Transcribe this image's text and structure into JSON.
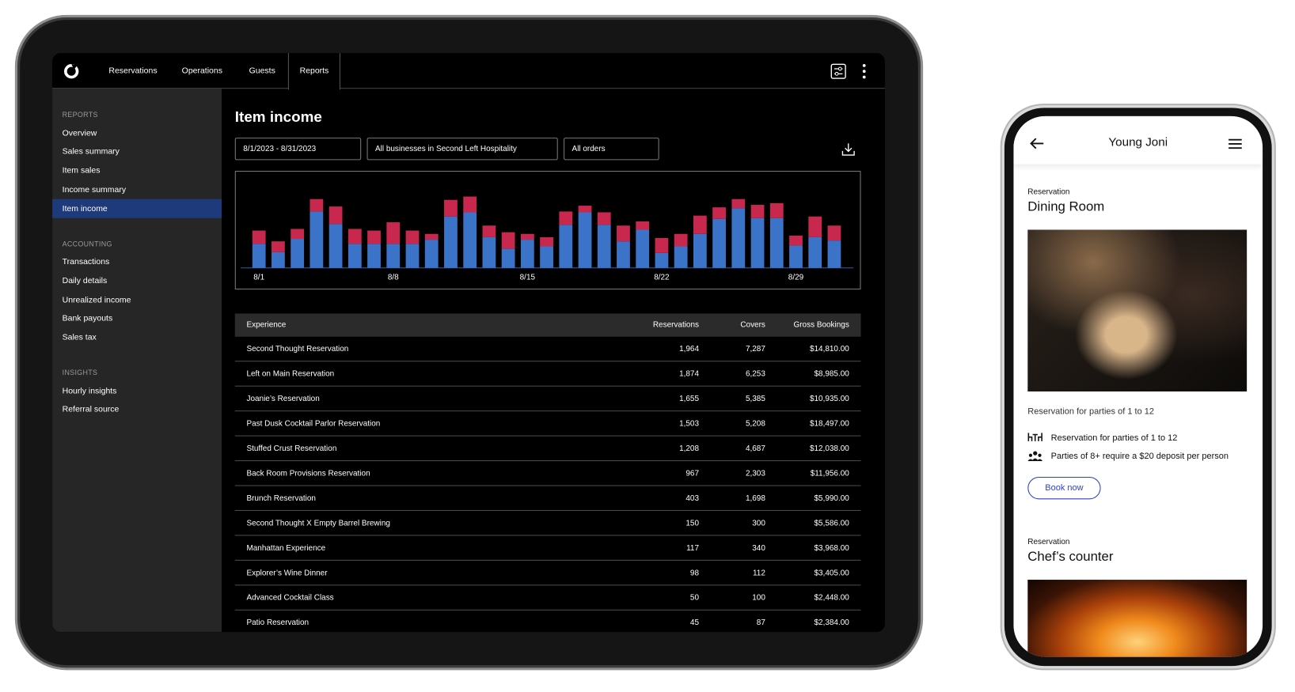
{
  "nav": {
    "items": [
      "Reservations",
      "Operations",
      "Guests",
      "Reports"
    ]
  },
  "sidebar": {
    "sections": [
      {
        "heading": "REPORTS",
        "items": [
          "Overview",
          "Sales summary",
          "Item sales",
          "Income summary",
          "Item income"
        ]
      },
      {
        "heading": "ACCOUNTING",
        "items": [
          "Transactions",
          "Daily details",
          "Unrealized income",
          "Bank payouts",
          "Sales tax"
        ]
      },
      {
        "heading": "INSIGHTS",
        "items": [
          "Hourly insights",
          "Referral source"
        ]
      }
    ]
  },
  "report": {
    "title": "Item income",
    "filters": [
      "8/1/2023 - 8/31/2023",
      "All businesses in Second Left Hospitality",
      "All orders"
    ]
  },
  "chart_data": {
    "type": "bar",
    "stacked": true,
    "categories": [
      "8/1",
      null,
      null,
      null,
      null,
      null,
      null,
      "8/8",
      null,
      null,
      null,
      null,
      null,
      null,
      "8/15",
      null,
      null,
      null,
      null,
      null,
      null,
      "8/22",
      null,
      null,
      null,
      null,
      null,
      null,
      "8/29",
      null,
      null
    ],
    "series": [
      {
        "color": "#3b73c8",
        "values": [
          29,
          19,
          35,
          68,
          53,
          29,
          29,
          29,
          29,
          34,
          62,
          67,
          37,
          23,
          34,
          26,
          52,
          67,
          52,
          32,
          46,
          18,
          26,
          41,
          59,
          72,
          60,
          60,
          27,
          37,
          33
        ]
      },
      {
        "color": "#c8274e",
        "values": [
          16,
          13,
          12,
          15,
          21,
          18,
          16,
          26,
          16,
          7,
          20,
          19,
          14,
          20,
          7,
          11,
          16,
          8,
          15,
          19,
          10,
          18,
          15,
          22,
          14,
          11,
          16,
          18,
          12,
          25,
          18
        ]
      }
    ],
    "ylim": [
      0,
      90
    ]
  },
  "table": {
    "columns": [
      "Experience",
      "Reservations",
      "Covers",
      "Gross Bookings"
    ],
    "rows": [
      [
        "Second Thought Reservation",
        "1,964",
        "7,287",
        "$14,810.00"
      ],
      [
        "Left on Main Reservation",
        "1,874",
        "6,253",
        "$8,985.00"
      ],
      [
        "Joanie’s Reservation",
        "1,655",
        "5,385",
        "$10,935.00"
      ],
      [
        "Past Dusk Cocktail Parlor Reservation",
        "1,503",
        "5,208",
        "$18,497.00"
      ],
      [
        "Stuffed Crust Reservation",
        "1,208",
        "4,687",
        "$12,038.00"
      ],
      [
        "Back Room Provisions Reservation",
        "967",
        "2,303",
        "$11,956.00"
      ],
      [
        "Brunch Reservation",
        "403",
        "1,698",
        "$5,990.00"
      ],
      [
        "Second Thought X Empty Barrel Brewing",
        "150",
        "300",
        "$5,586.00"
      ],
      [
        "Manhattan Experience",
        "117",
        "340",
        "$3,968.00"
      ],
      [
        "Explorer’s Wine Dinner",
        "98",
        "112",
        "$3,405.00"
      ],
      [
        "Advanced Cocktail Class",
        "50",
        "100",
        "$2,448.00"
      ],
      [
        "Patio Reservation",
        "45",
        "87",
        "$2,384.00"
      ]
    ]
  },
  "phone": {
    "title": "Young Joni",
    "cards": [
      {
        "label": "Reservation",
        "title": "Dining Room",
        "description": "Reservation for parties of 1 to 12",
        "details": [
          "Reservation for parties of 1 to 12",
          "Parties of 8+ require a $20 deposit per person"
        ],
        "button": "Book now"
      },
      {
        "label": "Reservation",
        "title": "Chef’s counter"
      }
    ]
  }
}
